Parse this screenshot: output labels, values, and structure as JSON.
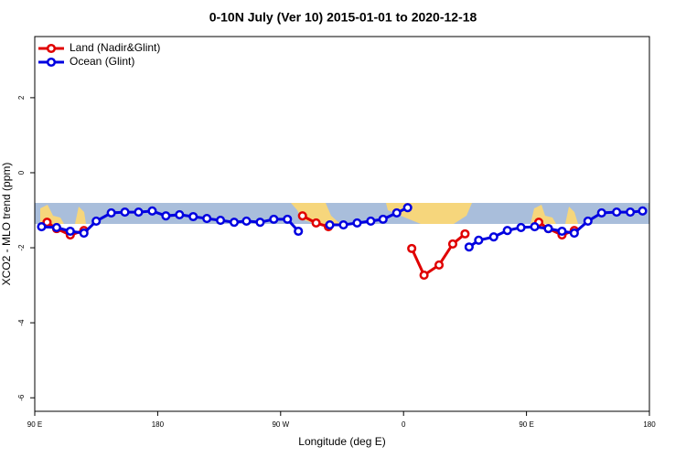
{
  "chart_data": {
    "type": "line",
    "title": "0-10N July (Ver 10)   2015-01-01 to 2020-12-18",
    "x_label": "Longitude (deg E)",
    "y_label": "XCO2 - MLO trend (ppm)",
    "xlim": [
      90,
      540
    ],
    "ylim": [
      -6.36,
      3.63
    ],
    "xticks": [
      {
        "value": 90,
        "label": "90 E"
      },
      180,
      {
        "value": 270,
        "label": "90 W"
      },
      {
        "value": 360,
        "label": "0"
      },
      {
        "value": 450,
        "label": "90 E"
      },
      {
        "value": 540,
        "label": "180"
      }
    ],
    "yticks": [
      2,
      0,
      -2,
      -4,
      -6
    ],
    "legend": "top-left",
    "series": [
      {
        "name": "Land (Nadir&Glint)",
        "color": "#e00000",
        "x": [
          99,
          106,
          116,
          126,
          null,
          286,
          296,
          305,
          null,
          366,
          375,
          386,
          396,
          405,
          null,
          459,
          466,
          476,
          485
        ],
        "values": [
          -1.32,
          -1.49,
          -1.66,
          -1.54,
          null,
          -1.15,
          -1.34,
          -1.44,
          null,
          -2.02,
          -2.73,
          -2.46,
          -1.9,
          -1.63,
          null,
          -1.32,
          -1.49,
          -1.66,
          -1.54
        ]
      },
      {
        "name": "Ocean (Glint)",
        "color": "#0000e0",
        "x": [
          95,
          106,
          116,
          126,
          135,
          146,
          156,
          166,
          176,
          186,
          196,
          206,
          216,
          226,
          236,
          245,
          255,
          265,
          275,
          283,
          null,
          306,
          316,
          326,
          336,
          345,
          355,
          363,
          null,
          408,
          415,
          426,
          436,
          446,
          456,
          466,
          476,
          485,
          495,
          505,
          516,
          526,
          535
        ],
        "values": [
          -1.44,
          -1.46,
          -1.56,
          -1.61,
          -1.29,
          -1.07,
          -1.05,
          -1.05,
          -1.02,
          -1.15,
          -1.12,
          -1.17,
          -1.22,
          -1.27,
          -1.32,
          -1.29,
          -1.32,
          -1.24,
          -1.24,
          -1.56,
          null,
          -1.39,
          -1.39,
          -1.34,
          -1.29,
          -1.24,
          -1.07,
          -0.93,
          null,
          -1.98,
          -1.8,
          -1.71,
          -1.54,
          -1.46,
          -1.44,
          -1.49,
          -1.56,
          -1.61,
          -1.29,
          -1.07,
          -1.05,
          -1.05,
          -1.02
        ]
      }
    ]
  }
}
